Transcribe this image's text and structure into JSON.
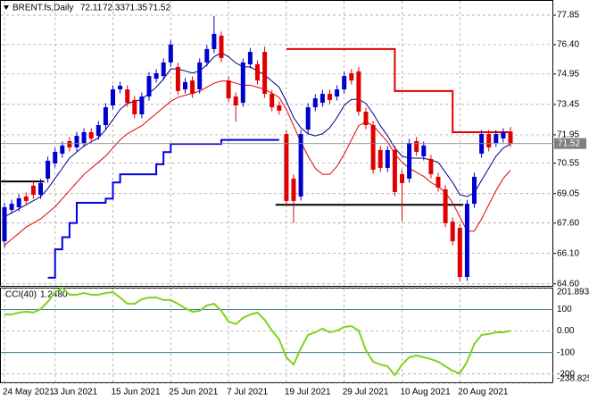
{
  "chart_data": {
    "type": "candlestick",
    "title": "BRENT.fs,Daily",
    "categories": [
      "24 May 2021",
      null,
      null,
      null,
      null,
      null,
      null,
      "3 Jun 2021",
      null,
      null,
      null,
      null,
      null,
      null,
      null,
      "15 Jun 2021",
      null,
      null,
      null,
      null,
      null,
      null,
      null,
      "25 Jun 2021",
      null,
      null,
      null,
      null,
      null,
      null,
      null,
      "7 Jul 2021",
      null,
      null,
      null,
      null,
      null,
      null,
      null,
      "19 Jul 2021",
      null,
      null,
      null,
      null,
      null,
      null,
      null,
      "29 Jul 2021",
      null,
      null,
      null,
      null,
      null,
      null,
      null,
      "10 Aug 2021",
      null,
      null,
      null,
      null,
      null,
      null,
      null,
      "20 Aug 2021",
      null,
      null,
      null,
      null,
      null,
      null,
      null
    ],
    "open": [
      66.7,
      68.25,
      68.38,
      68.91,
      69.44,
      68.99,
      69.79,
      70.54,
      71.02,
      71.64,
      71.33,
      71.55,
      72.08,
      71.9,
      72.43,
      73.4,
      74.19,
      74.19,
      73.67,
      72.96,
      73.84,
      74.72,
      74.85,
      75.52,
      75.3,
      74.19,
      74.63,
      74.19,
      75.52,
      76.18,
      76.84,
      74.63,
      73.84,
      73.53,
      75.43,
      75.43,
      76.04,
      73.97,
      73.4,
      71.99,
      69.79,
      68.91,
      72.21,
      73.31,
      73.53,
      73.97,
      73.84,
      74.19,
      74.99,
      75.08,
      73.09,
      72.43,
      71.2,
      70.32,
      71.2,
      70.01,
      69.79,
      71.64,
      70.89,
      70.76,
      69.88,
      69.26,
      67.67,
      67.36,
      64.94,
      68.55,
      71.02,
      71.99,
      71.55,
      71.77,
      72.11
    ],
    "high": [
      68.6,
      68.75,
      69.02,
      69.11,
      69.64,
      69.77,
      70.87,
      71.31,
      71.62,
      71.84,
      72.1,
      72.28,
      72.28,
      72.63,
      73.51,
      74.39,
      74.57,
      74.39,
      73.87,
      74.04,
      75.05,
      75.19,
      75.72,
      76.6,
      75.5,
      74.75,
      74.83,
      75.72,
      76.38,
      77.8,
      77.04,
      74.83,
      74.04,
      75.72,
      76.24,
      75.63,
      76.3,
      74.17,
      73.6,
      72.19,
      69.99,
      72.19,
      73.51,
      73.95,
      74.17,
      74.17,
      74.39,
      75.05,
      75.19,
      75.3,
      73.29,
      72.63,
      71.4,
      71.4,
      71.4,
      70.21,
      71.75,
      71.84,
      71.62,
      70.96,
      70.08,
      69.46,
      67.87,
      67.56,
      68.75,
      70.08,
      72.19,
      72.19,
      72.19,
      72.28,
      72.33
    ],
    "low": [
      66.4,
      68.05,
      68.18,
      68.49,
      68.79,
      68.79,
      69.59,
      70.34,
      70.82,
      71.13,
      71.13,
      71.35,
      71.57,
      71.7,
      72.23,
      73.2,
      73.99,
      73.33,
      72.76,
      72.76,
      73.64,
      74.52,
      74.65,
      75.32,
      73.91,
      73.99,
      73.77,
      73.99,
      75.32,
      75.98,
      75.54,
      73.55,
      72.6,
      73.33,
      75.23,
      74.43,
      73.77,
      73.11,
      72.94,
      68.49,
      67.6,
      68.71,
      72.01,
      73.11,
      73.33,
      73.47,
      73.64,
      73.99,
      74.43,
      72.89,
      72.23,
      70.03,
      70.12,
      70.12,
      68.93,
      67.7,
      69.59,
      70.91,
      70.69,
      69.81,
      69.15,
      67.39,
      66.5,
      64.74,
      64.74,
      68.35,
      70.82,
      71.13,
      71.35,
      71.57,
      71.35
    ],
    "close": [
      68.38,
      68.55,
      68.82,
      68.69,
      68.99,
      69.57,
      70.67,
      71.11,
      71.42,
      71.33,
      71.9,
      72.08,
      71.77,
      72.43,
      73.31,
      74.19,
      74.37,
      73.53,
      72.96,
      73.84,
      74.85,
      74.99,
      75.52,
      76.4,
      74.11,
      74.55,
      73.97,
      75.52,
      76.18,
      76.93,
      75.74,
      73.75,
      73.4,
      75.52,
      76.04,
      74.63,
      73.97,
      73.31,
      73.14,
      68.69,
      68.69,
      71.99,
      73.31,
      73.75,
      73.97,
      73.67,
      74.19,
      74.85,
      74.63,
      73.09,
      72.43,
      70.23,
      70.32,
      71.2,
      69.13,
      69.57,
      71.55,
      71.11,
      71.42,
      70.01,
      69.35,
      67.59,
      66.7,
      64.94,
      68.55,
      69.88,
      71.99,
      71.33,
      71.99,
      72.08,
      71.52
    ],
    "up_color": "#0000cc",
    "down_color": "#e00000",
    "series": [
      {
        "color": "#000080",
        "values": [
          67.9,
          68.1,
          68.3,
          68.5,
          68.7,
          68.9,
          69.3,
          69.8,
          70.3,
          70.8,
          71.1,
          71.4,
          71.6,
          71.8,
          72.2,
          72.7,
          73.2,
          73.5,
          73.6,
          73.7,
          74.0,
          74.3,
          74.7,
          75.2,
          75.2,
          75.1,
          75.0,
          75.1,
          75.4,
          75.8,
          76.0,
          75.8,
          75.5,
          75.3,
          75.3,
          75.1,
          74.9,
          74.6,
          74.3,
          73.6,
          72.8,
          72.3,
          72.0,
          71.9,
          72.0,
          72.3,
          72.8,
          73.4,
          73.7,
          73.7,
          73.5,
          73.0,
          72.4,
          71.9,
          71.3,
          70.9,
          70.8,
          70.8,
          70.8,
          70.7,
          70.6,
          70.1,
          69.6,
          69.0,
          68.9,
          69.1,
          69.7,
          70.3,
          70.9,
          71.3,
          71.5
        ]
      },
      {
        "color": "#e00000",
        "values": [
          66.5,
          66.8,
          67.1,
          67.4,
          67.6,
          67.8,
          68.1,
          68.4,
          68.8,
          69.2,
          69.6,
          70.0,
          70.3,
          70.6,
          70.9,
          71.3,
          71.7,
          72.0,
          72.2,
          72.4,
          72.7,
          73.0,
          73.3,
          73.6,
          73.8,
          73.9,
          74.0,
          74.1,
          74.3,
          74.5,
          74.6,
          74.6,
          74.5,
          74.4,
          74.4,
          74.3,
          74.2,
          74.0,
          73.8,
          73.2,
          72.4,
          71.6,
          70.9,
          70.3,
          70.0,
          70.0,
          70.4,
          71.0,
          71.7,
          72.4,
          72.6,
          72.4,
          72.0,
          71.6,
          71.0,
          70.6,
          70.3,
          70.1,
          69.9,
          69.6,
          69.4,
          69.1,
          68.6,
          67.9,
          67.2,
          67.2,
          67.8,
          68.5,
          69.2,
          69.8,
          70.2
        ]
      },
      {
        "color": "#0000e0",
        "step": true,
        "values": [
          null,
          null,
          null,
          null,
          null,
          null,
          64.9,
          66.3,
          66.9,
          67.6,
          68.6,
          68.6,
          68.6,
          68.6,
          68.8,
          69.6,
          70.0,
          70.0,
          70.0,
          70.0,
          70.0,
          70.5,
          71.1,
          71.5,
          71.5,
          71.5,
          71.5,
          71.5,
          71.5,
          71.5,
          71.7,
          71.7,
          71.7,
          71.7,
          71.7,
          71.7,
          71.7,
          71.7,
          71.7,
          null,
          null,
          null,
          null,
          null,
          null,
          null,
          null,
          null,
          null,
          null,
          null,
          null,
          null,
          null,
          null,
          null,
          null,
          null,
          null,
          null,
          null,
          null,
          null,
          null,
          null,
          null,
          null,
          null,
          null,
          null,
          null
        ]
      },
      {
        "color": "#e00000",
        "step": true,
        "values": [
          null,
          null,
          null,
          null,
          null,
          null,
          null,
          null,
          null,
          null,
          null,
          null,
          null,
          null,
          null,
          null,
          null,
          null,
          null,
          null,
          null,
          null,
          null,
          null,
          null,
          null,
          null,
          null,
          null,
          null,
          null,
          null,
          null,
          null,
          null,
          null,
          null,
          null,
          null,
          76.18,
          76.18,
          76.18,
          76.18,
          76.18,
          76.18,
          76.18,
          76.18,
          76.18,
          76.18,
          76.18,
          76.18,
          76.18,
          76.18,
          76.18,
          74.11,
          74.11,
          74.11,
          74.11,
          74.11,
          74.11,
          74.11,
          74.11,
          72.08,
          72.08,
          72.08,
          72.08,
          72.08,
          72.08,
          72.08,
          72.08,
          72.08
        ]
      }
    ],
    "levels": [
      {
        "value": 69.65,
        "from": 0,
        "to": 5,
        "color": "#000000"
      },
      {
        "value": 68.5,
        "from": 38,
        "to": 63,
        "color": "#000000"
      }
    ],
    "ylim": [
      64.5,
      78.6
    ],
    "yticks": [
      77.85,
      {
        "value": 76.4,
        "label": "76.40"
      },
      74.95,
      73.45,
      71.95,
      70.55,
      69.05,
      {
        "value": 67.6,
        "label": "67.60"
      },
      {
        "value": 66.1,
        "label": "66.10"
      },
      {
        "value": 64.6,
        "label": "64.60"
      }
    ],
    "grid": true,
    "cci": {
      "name": "CCI(40)",
      "color": "#7fd31c",
      "values": [
        77,
        77,
        86,
        90,
        86,
        102,
        136,
        181,
        201.8937,
        169,
        169,
        177,
        169,
        169,
        177,
        181,
        156,
        127,
        127,
        148,
        156,
        156,
        144,
        144,
        127,
        106,
        90,
        94,
        119,
        127,
        94,
        44,
        32,
        61,
        77,
        86,
        52,
        2,
        -39,
        -122,
        -156,
        -81,
        -18,
        -6,
        11,
        -6,
        2,
        19,
        23,
        2,
        -89,
        -143,
        -156,
        -164,
        -206,
        -156,
        -122,
        -114,
        -122,
        -131,
        -143,
        -164,
        -185,
        -197,
        -143,
        -60,
        -18,
        -14,
        -6,
        -6,
        1.248
      ],
      "value_labels": [
        null,
        null,
        null,
        null,
        null,
        null,
        null,
        null,
        null,
        null,
        null,
        null,
        null,
        null,
        null,
        null,
        null,
        null,
        null,
        null,
        null,
        null,
        null,
        null,
        null,
        null,
        null,
        null,
        null,
        null,
        null,
        null,
        null,
        null,
        null,
        null,
        null,
        null,
        null,
        null,
        null,
        null,
        null,
        null,
        null,
        null,
        null,
        null,
        null,
        null,
        null,
        null,
        null,
        null,
        null,
        null,
        null,
        null,
        null,
        null,
        null,
        null,
        null,
        null,
        null,
        null,
        null,
        null,
        null,
        null,
        "1.2480"
      ],
      "ylim": [
        -238.825,
        201.8937
      ],
      "yticks": [
        201.8937,
        100,
        {
          "value": 0,
          "label": "0.00"
        },
        -100,
        -200,
        -238.825
      ]
    }
  }
}
